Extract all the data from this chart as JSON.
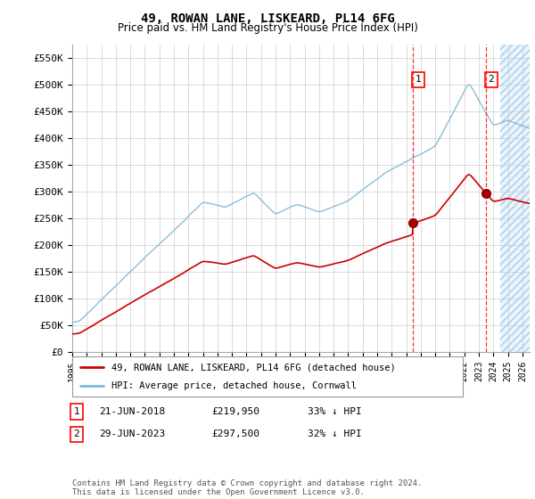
{
  "title": "49, ROWAN LANE, LISKEARD, PL14 6FG",
  "subtitle": "Price paid vs. HM Land Registry's House Price Index (HPI)",
  "ylabel_ticks": [
    "£0",
    "£50K",
    "£100K",
    "£150K",
    "£200K",
    "£250K",
    "£300K",
    "£350K",
    "£400K",
    "£450K",
    "£500K",
    "£550K"
  ],
  "ytick_vals": [
    0,
    50000,
    100000,
    150000,
    200000,
    250000,
    300000,
    350000,
    400000,
    450000,
    500000,
    550000
  ],
  "ylim": [
    0,
    575000
  ],
  "xlim_start": 1995.0,
  "xlim_end": 2026.5,
  "hpi_color": "#7ab8d9",
  "price_color": "#cc0000",
  "purchase1_date": 2018.47,
  "purchase1_price": 219950,
  "purchase2_date": 2023.49,
  "purchase2_price": 297500,
  "legend_line1": "49, ROWAN LANE, LISKEARD, PL14 6FG (detached house)",
  "legend_line2": "HPI: Average price, detached house, Cornwall",
  "table_row1": [
    "1",
    "21-JUN-2018",
    "£219,950",
    "33% ↓ HPI"
  ],
  "table_row2": [
    "2",
    "29-JUN-2023",
    "£297,500",
    "32% ↓ HPI"
  ],
  "footer": "Contains HM Land Registry data © Crown copyright and database right 2024.\nThis data is licensed under the Open Government Licence v3.0.",
  "bg_color": "#ffffff",
  "grid_color": "#cccccc",
  "future_bg_color": "#ddeeff",
  "future_start": 2024.5
}
